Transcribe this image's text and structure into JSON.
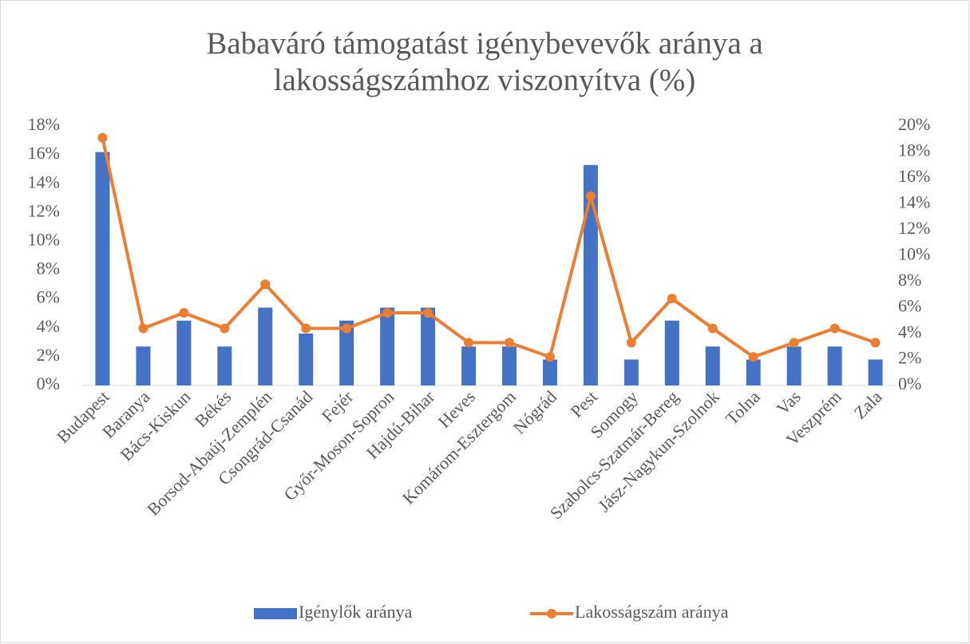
{
  "chart_data": {
    "type": "bar_line",
    "title": [
      "Babaváró támogatást igénybevevők aránya a",
      "lakosságszámhoz viszonyítva (%)"
    ],
    "categories": [
      "Budapest",
      "Baranya",
      "Bács-Kiskun",
      "Békés",
      "Borsod-Abaúj-Zemplén",
      "Csongrád-Csanád",
      "Fejér",
      "Győr-Moson-Sopron",
      "Hajdú-Bihar",
      "Heves",
      "Komárom-Esztergom",
      "Nógrád",
      "Pest",
      "Somogy",
      "Szabolcs-Szatmár-Bereg",
      "Jász-Nagykun-Szolnok",
      "Tolna",
      "Vas",
      "Veszprém",
      "Zala"
    ],
    "series": [
      {
        "name": "Igénylők aránya",
        "type": "bar",
        "color": "#4472c4",
        "axis": "y",
        "values": [
          16.2,
          2.7,
          4.5,
          2.7,
          5.4,
          3.6,
          4.5,
          5.4,
          5.4,
          2.7,
          2.7,
          1.8,
          15.3,
          1.8,
          4.5,
          2.7,
          1.8,
          2.7,
          2.7,
          1.8
        ]
      },
      {
        "name": "Lakosságszám aránya",
        "type": "line",
        "color": "#ed7d31",
        "axis": "y2",
        "values": [
          19.1,
          4.4,
          5.6,
          4.4,
          7.8,
          4.4,
          4.4,
          5.6,
          5.6,
          3.3,
          3.3,
          2.2,
          14.6,
          3.3,
          6.7,
          4.4,
          2.2,
          3.3,
          4.4,
          3.3
        ]
      }
    ],
    "ylim": [
      0,
      18
    ],
    "yticks": [
      {
        "value": 0,
        "label": "0%"
      },
      {
        "value": 2,
        "label": "2%"
      },
      {
        "value": 4,
        "label": "4%"
      },
      {
        "value": 6,
        "label": "6%"
      },
      {
        "value": 8,
        "label": "8%"
      },
      {
        "value": 10,
        "label": "10%"
      },
      {
        "value": 12,
        "label": "12%"
      },
      {
        "value": 14,
        "label": "14%"
      },
      {
        "value": 16,
        "label": "16%"
      },
      {
        "value": 18,
        "label": "18%"
      }
    ],
    "y2lim": [
      0,
      20
    ],
    "y2ticks": [
      {
        "value": 0,
        "label": "0%"
      },
      {
        "value": 2,
        "label": "2%"
      },
      {
        "value": 4,
        "label": "4%"
      },
      {
        "value": 6,
        "label": "6%"
      },
      {
        "value": 8,
        "label": "8%"
      },
      {
        "value": 10,
        "label": "10%"
      },
      {
        "value": 12,
        "label": "12%"
      },
      {
        "value": 14,
        "label": "14%"
      },
      {
        "value": 16,
        "label": "16%"
      },
      {
        "value": 18,
        "label": "18%"
      },
      {
        "value": 20,
        "label": "20%"
      }
    ],
    "grid": false,
    "legend": "bottom"
  }
}
